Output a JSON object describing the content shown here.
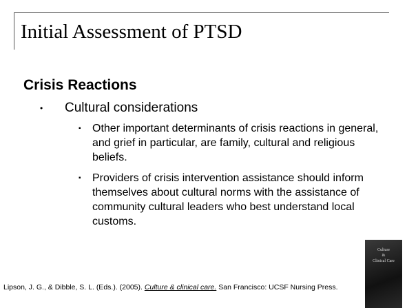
{
  "slide": {
    "title": "Initial Assessment of PTSD",
    "heading": "Crisis Reactions",
    "bullets": [
      {
        "text": "Cultural considerations",
        "subbullets": [
          "Other important determinants of crisis reactions in general, and grief in particular, are family, cultural and religious beliefs.",
          "Providers of crisis intervention assistance should inform themselves about cultural norms with the assistance of community cultural leaders who best understand local customs."
        ]
      }
    ],
    "citation": {
      "before": "Lipson, J. G., & Dibble, S. L. (Eds.). (2005). ",
      "book": "Culture & clinical care.",
      "after": " San Francisco: UCSF Nursing Press."
    },
    "cover": {
      "line1": "Culture",
      "line2": "&",
      "line3": "Clinical Care"
    }
  }
}
